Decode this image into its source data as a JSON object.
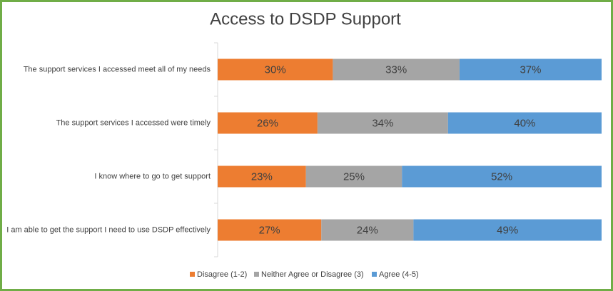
{
  "chart_data": {
    "type": "stacked-bar-horizontal",
    "title": "Access to DSDP Support",
    "categories": [
      "The support services I accessed meet all of my needs",
      "The support services I accessed were timely",
      "I know where to go to get support",
      "I am able to get the support I need to use DSDP effectively"
    ],
    "series": [
      {
        "name": "Disagree (1-2)",
        "color": "#ed7d31",
        "values": [
          30,
          26,
          23,
          27
        ],
        "value_labels": [
          "30%",
          "26%",
          "23%",
          "27%"
        ]
      },
      {
        "name": "Neither Agree or Disagree (3)",
        "color": "#a5a5a5",
        "values": [
          33,
          34,
          25,
          24
        ],
        "value_labels": [
          "33%",
          "34%",
          "25%",
          "24%"
        ]
      },
      {
        "name": "Agree (4-5)",
        "color": "#5b9bd5",
        "values": [
          37,
          40,
          52,
          49
        ],
        "value_labels": [
          "37%",
          "40%",
          "52%",
          "49%"
        ]
      }
    ]
  }
}
